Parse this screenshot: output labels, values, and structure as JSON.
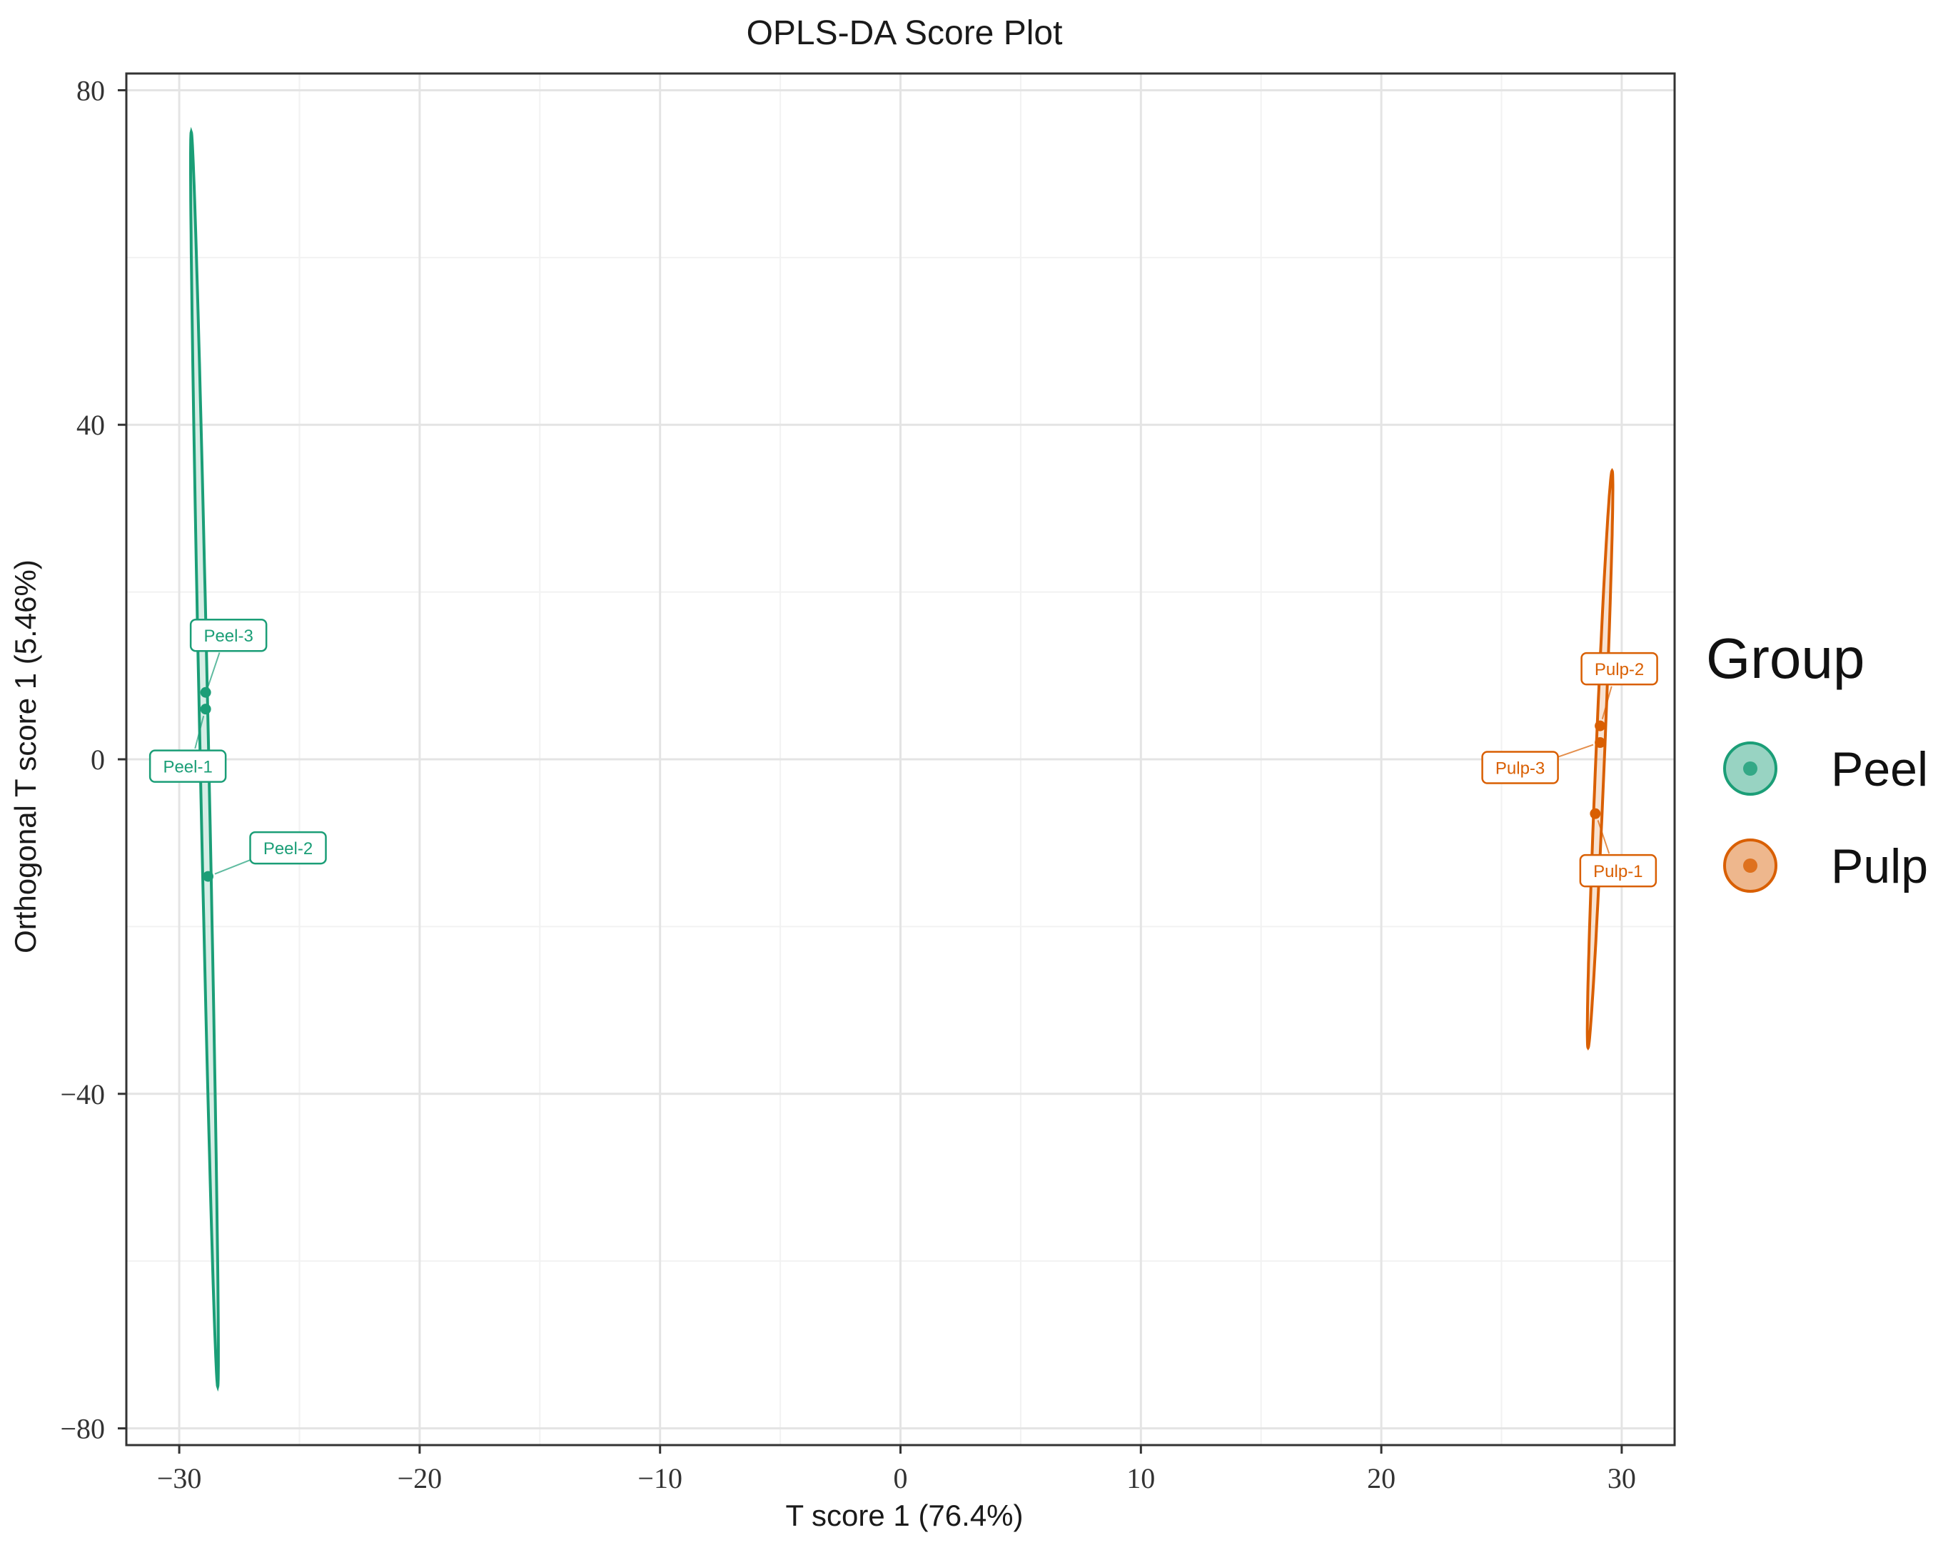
{
  "chart_data": {
    "type": "scatter",
    "title": "OPLS-DA Score Plot",
    "xlabel": "T score 1 (76.4%)",
    "ylabel": "Orthogonal T score 1 (5.46%)",
    "xlim": [
      -32.2,
      32.2
    ],
    "ylim": [
      -82,
      82
    ],
    "xticks": [
      -30,
      -20,
      -10,
      0,
      10,
      20,
      30
    ],
    "xtick_labels": [
      "−30",
      "−20",
      "−10",
      "0",
      "10",
      "20",
      "30"
    ],
    "yticks": [
      -80,
      -40,
      0,
      40,
      80
    ],
    "ytick_labels": [
      "−80",
      "−40",
      "0",
      "40",
      "80"
    ],
    "grid": true,
    "legend_position": "right",
    "legend_title": "Group",
    "series": [
      {
        "name": "Peel",
        "color": "#1b9e77",
        "points": [
          {
            "label": "Peel-1",
            "x": -28.9,
            "y": 6.0
          },
          {
            "label": "Peel-2",
            "x": -28.8,
            "y": -14.0
          },
          {
            "label": "Peel-3",
            "x": -28.9,
            "y": 8.0
          }
        ],
        "ellipse": {
          "top": {
            "x": -29.5,
            "y": 75.0
          },
          "bottom": {
            "x": -28.4,
            "y": -75.0
          }
        }
      },
      {
        "name": "Pulp",
        "color": "#d95f02",
        "points": [
          {
            "label": "Pulp-1",
            "x": 28.9,
            "y": -6.5
          },
          {
            "label": "Pulp-2",
            "x": 29.1,
            "y": 4.0
          },
          {
            "label": "Pulp-3",
            "x": 29.1,
            "y": 2.0
          }
        ],
        "ellipse": {
          "top": {
            "x": 29.6,
            "y": 34.5
          },
          "bottom": {
            "x": 28.6,
            "y": -34.5
          }
        }
      }
    ]
  }
}
